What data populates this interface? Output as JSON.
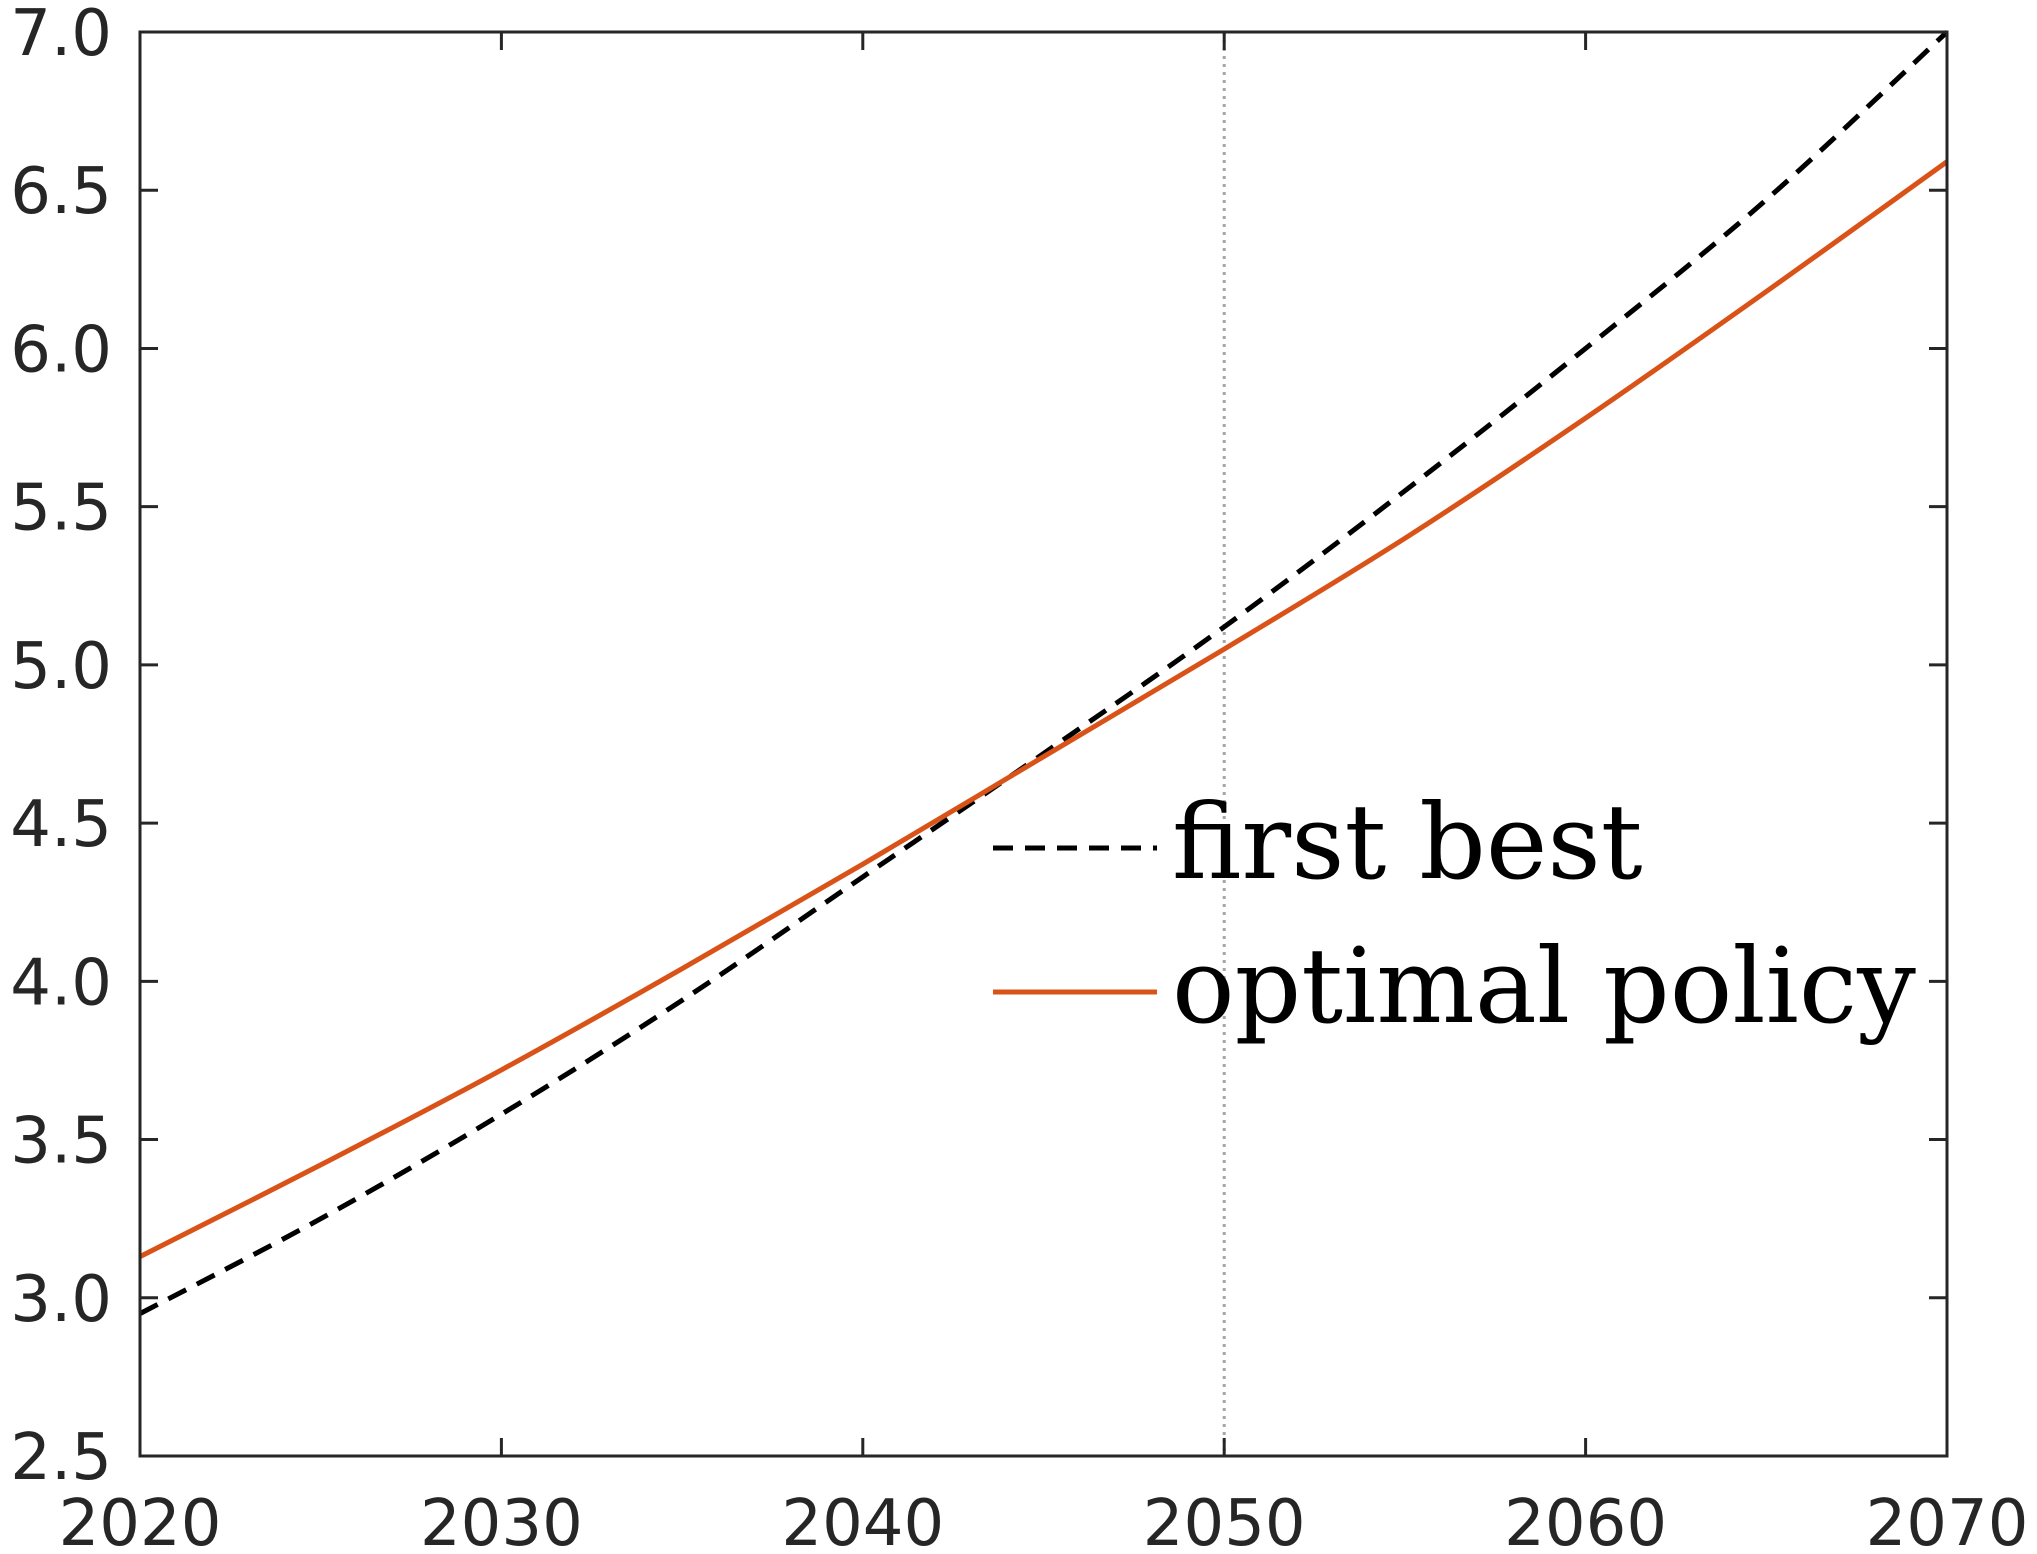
{
  "chart_data": {
    "type": "line",
    "title": "",
    "xlabel": "",
    "ylabel": "",
    "xlim": [
      2020,
      2070
    ],
    "ylim": [
      2.5,
      7.0
    ],
    "x_ticks": [
      2020,
      2030,
      2040,
      2050,
      2060,
      2070
    ],
    "x_tick_labels": [
      "2020",
      "2030",
      "2040",
      "2050",
      "2060",
      "2070"
    ],
    "y_ticks": [
      2.5,
      3.0,
      3.5,
      4.0,
      4.5,
      5.0,
      5.5,
      6.0,
      6.5,
      7.0
    ],
    "y_tick_labels": [
      "2.5",
      "3.0",
      "3.5",
      "4.0",
      "4.5",
      "5.0",
      "5.5",
      "6.0",
      "6.5",
      "7.0"
    ],
    "grid": false,
    "reference_line": {
      "x": 2050,
      "style": "dotted",
      "color": "#a6a6a6"
    },
    "legend_position": "center-right",
    "x": [
      2020,
      2025,
      2030,
      2035,
      2040,
      2045,
      2050,
      2055,
      2060,
      2065,
      2070
    ],
    "series": [
      {
        "name": "first best",
        "style": "dashed",
        "color": "#000000",
        "values": [
          2.95,
          3.25,
          3.58,
          3.94,
          4.33,
          4.72,
          5.12,
          5.55,
          6.0,
          6.47,
          7.0
        ]
      },
      {
        "name": "optimal policy",
        "style": "solid",
        "color": "#d95319",
        "values": [
          3.13,
          3.42,
          3.72,
          4.04,
          4.37,
          4.71,
          5.05,
          5.4,
          5.78,
          6.18,
          6.59
        ]
      }
    ]
  }
}
